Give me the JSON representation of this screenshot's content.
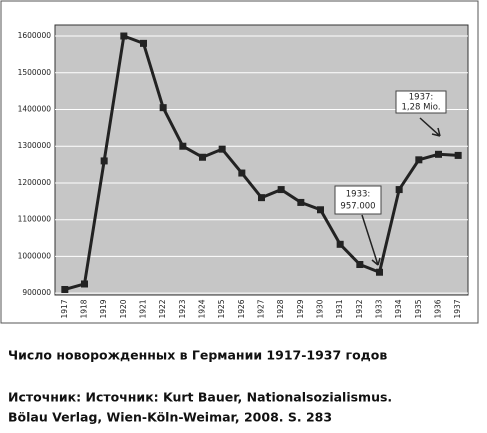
{
  "chart_data": {
    "type": "line",
    "categories": [
      "1917",
      "1918",
      "1919",
      "1920",
      "1921",
      "1922",
      "1923",
      "1924",
      "1925",
      "1926",
      "1927",
      "1928",
      "1929",
      "1930",
      "1931",
      "1932",
      "1933",
      "1934",
      "1935",
      "1936",
      "1937"
    ],
    "series": [
      {
        "color": "#222222",
        "values": [
          910000,
          925000,
          1260000,
          1600000,
          1580000,
          1405000,
          1300000,
          1270000,
          1292000,
          1227000,
          1160000,
          1182000,
          1147000,
          1127000,
          1033000,
          978000,
          957000,
          1182000,
          1263000,
          1278000,
          1275000
        ]
      }
    ],
    "ylim": [
      895000,
      1630000
    ],
    "yticks": [
      900000,
      1000000,
      1100000,
      1200000,
      1300000,
      1400000,
      1500000,
      1600000
    ],
    "grid": true,
    "annotations": [
      {
        "lines": [
          "1937:",
          "1,28 Mio."
        ]
      },
      {
        "lines": [
          "1933:",
          "957.000"
        ]
      }
    ]
  },
  "caption": {
    "title": "Число новорожденных в Германии 1917-1937 годов",
    "source": [
      "Источник: Источник: Kurt Bauer, Nationalsozialismus.",
      "Bölau Verlag, Wien-Köln-Weimar, 2008. S. 283"
    ]
  }
}
